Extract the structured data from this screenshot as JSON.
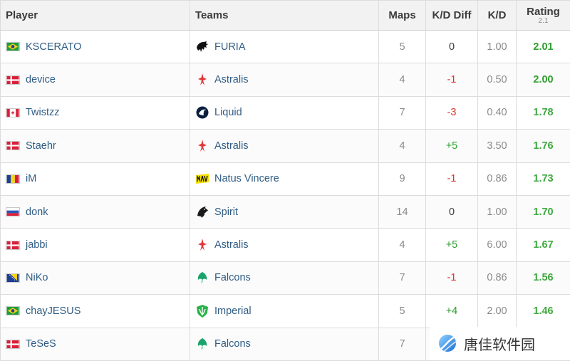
{
  "headers": {
    "player": "Player",
    "teams": "Teams",
    "maps": "Maps",
    "kd_diff": "K/D Diff",
    "kd": "K/D",
    "rating": "Rating",
    "rating_version": "2.1"
  },
  "colors": {
    "player_link": "#2f5c84",
    "positive_diff": "#2e9e2e",
    "negative_diff": "#d9352a",
    "neutral_diff": "#3b3b3b",
    "rating_high": "#2e9e2e",
    "rating_mid": "#3fa83f"
  },
  "rows": [
    {
      "player": "KSCERATO",
      "flag": "brazil-flag-icon",
      "team": "FURIA",
      "logo": "furia-logo-icon",
      "maps": "5",
      "kd_diff": "0",
      "diff_sign": "neutral",
      "kd": "1.00",
      "rating": "2.01"
    },
    {
      "player": "device",
      "flag": "denmark-flag-icon",
      "team": "Astralis",
      "logo": "astralis-logo-icon",
      "maps": "4",
      "kd_diff": "-1",
      "diff_sign": "negative",
      "kd": "0.50",
      "rating": "2.00"
    },
    {
      "player": "Twistzz",
      "flag": "canada-flag-icon",
      "team": "Liquid",
      "logo": "liquid-logo-icon",
      "maps": "7",
      "kd_diff": "-3",
      "diff_sign": "negative",
      "kd": "0.40",
      "rating": "1.78"
    },
    {
      "player": "Staehr",
      "flag": "denmark-flag-icon",
      "team": "Astralis",
      "logo": "astralis-logo-icon",
      "maps": "4",
      "kd_diff": "+5",
      "diff_sign": "positive",
      "kd": "3.50",
      "rating": "1.76"
    },
    {
      "player": "iM",
      "flag": "romania-flag-icon",
      "team": "Natus Vincere",
      "logo": "navi-logo-icon",
      "maps": "9",
      "kd_diff": "-1",
      "diff_sign": "negative",
      "kd": "0.86",
      "rating": "1.73"
    },
    {
      "player": "donk",
      "flag": "russia-flag-icon",
      "team": "Spirit",
      "logo": "spirit-logo-icon",
      "maps": "14",
      "kd_diff": "0",
      "diff_sign": "neutral",
      "kd": "1.00",
      "rating": "1.70"
    },
    {
      "player": "jabbi",
      "flag": "denmark-flag-icon",
      "team": "Astralis",
      "logo": "astralis-logo-icon",
      "maps": "4",
      "kd_diff": "+5",
      "diff_sign": "positive",
      "kd": "6.00",
      "rating": "1.67"
    },
    {
      "player": "NiKo",
      "flag": "bosnia-flag-icon",
      "team": "Falcons",
      "logo": "falcons-logo-icon",
      "maps": "7",
      "kd_diff": "-1",
      "diff_sign": "negative",
      "kd": "0.86",
      "rating": "1.56"
    },
    {
      "player": "chayJESUS",
      "flag": "brazil-flag-icon",
      "team": "Imperial",
      "logo": "imperial-logo-icon",
      "maps": "5",
      "kd_diff": "+4",
      "diff_sign": "positive",
      "kd": "2.00",
      "rating": "1.46"
    },
    {
      "player": "TeSeS",
      "flag": "denmark-flag-icon",
      "team": "Falcons",
      "logo": "falcons-logo-icon",
      "maps": "7",
      "kd_diff": "",
      "diff_sign": "neutral",
      "kd": "",
      "rating": ""
    }
  ],
  "watermark": {
    "text": "唐佳软件园",
    "logo": "watermark-logo-icon"
  }
}
